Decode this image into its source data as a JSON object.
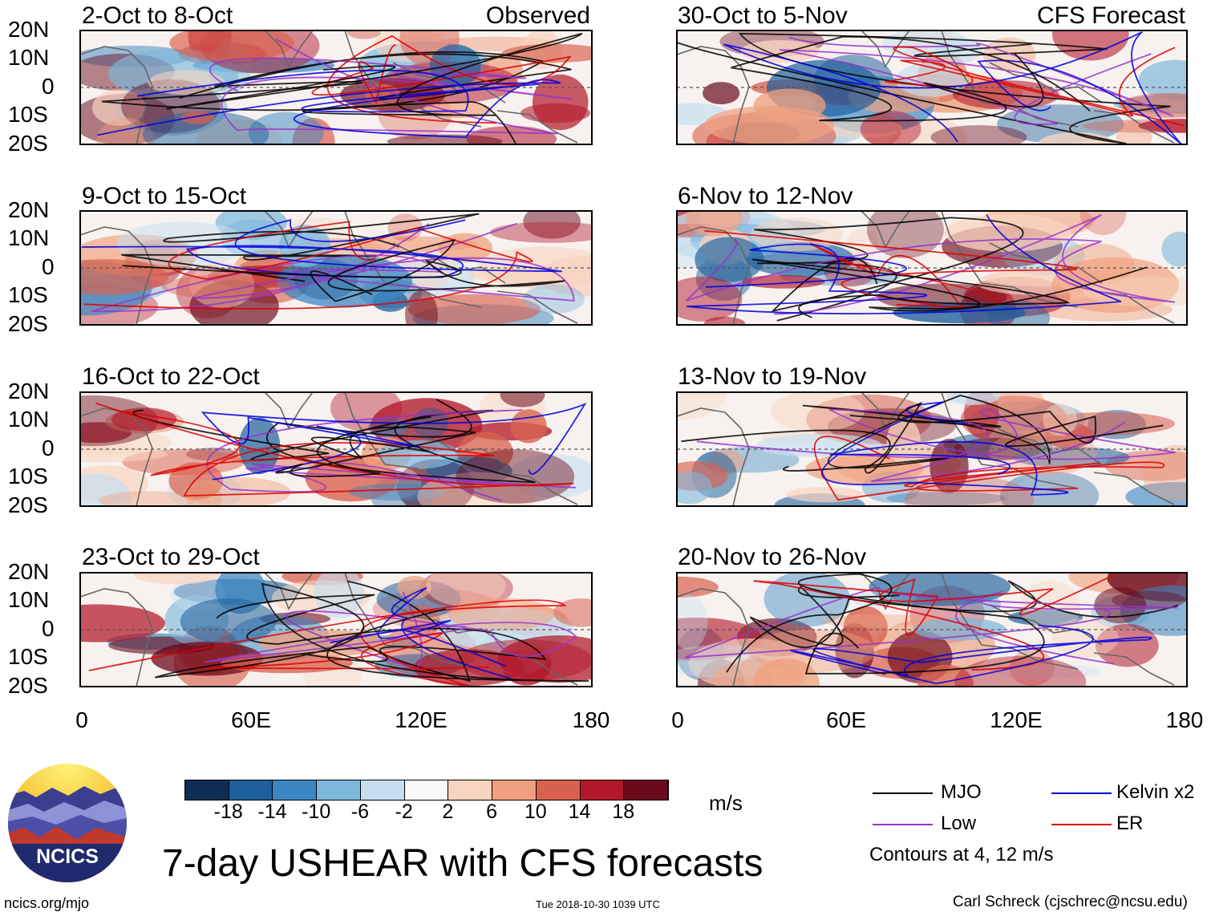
{
  "header": {
    "observed_label": "Observed",
    "forecast_label": "CFS Forecast"
  },
  "panels_left": [
    {
      "period": "2-Oct to 8-Oct"
    },
    {
      "period": "9-Oct to 15-Oct"
    },
    {
      "period": "16-Oct to 22-Oct"
    },
    {
      "period": "23-Oct to 29-Oct"
    }
  ],
  "panels_right": [
    {
      "period": "30-Oct to 5-Nov"
    },
    {
      "period": "6-Nov to 12-Nov"
    },
    {
      "period": "13-Nov to 19-Nov"
    },
    {
      "period": "20-Nov to 26-Nov"
    }
  ],
  "axes": {
    "lat_labels": [
      "20N",
      "10N",
      "0",
      "10S",
      "20S"
    ],
    "lon_labels": [
      "0",
      "60E",
      "120E",
      "180"
    ]
  },
  "colorbar": {
    "unit": "m/s",
    "ticks": [
      "-18",
      "-14",
      "-10",
      "-6",
      "-2",
      "2",
      "6",
      "10",
      "14",
      "18"
    ],
    "colors": [
      "#0e2d54",
      "#1f5f9c",
      "#3a86c2",
      "#7eb7dc",
      "#c6dff0",
      "#f9f9f9",
      "#f9d4c0",
      "#f0a07e",
      "#d9614f",
      "#b2182b",
      "#6b0a1c"
    ]
  },
  "legend": {
    "mjo": "MJO",
    "kelvin": "Kelvin x2",
    "low": "Low",
    "er": "ER",
    "contours_note": "Contours at 4, 12 m/s",
    "mjo_color": "#000000",
    "kelvin_color": "#0000dd",
    "low_color": "#9933cc",
    "er_color": "#dd0000"
  },
  "footer": {
    "main_title": "7-day USHEAR with CFS forecasts",
    "website": "ncics.org/mjo",
    "timestamp": "Tue 2018-10-30 1039 UTC",
    "author": "Carl Schreck (cjschrec@ncsu.edu)",
    "logo_text": "NCICS"
  }
}
